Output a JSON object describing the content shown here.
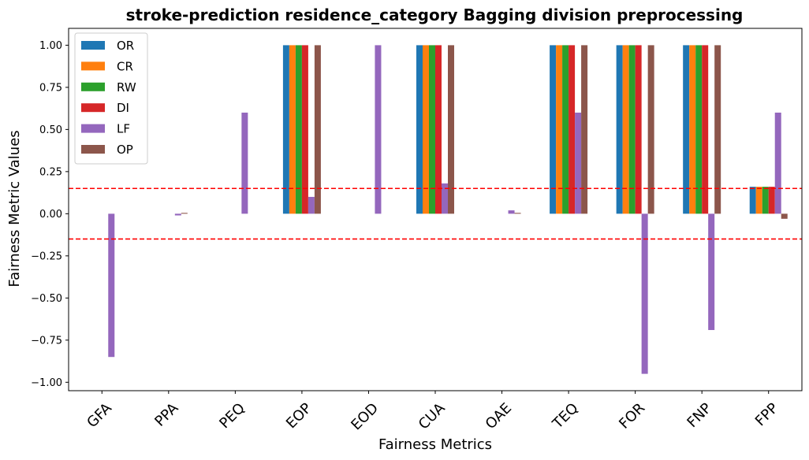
{
  "chart_data": {
    "type": "bar",
    "title": "stroke-prediction residence_category Bagging division preprocessing",
    "xlabel": "Fairness Metrics",
    "ylabel": "Fairness Metric Values",
    "categories": [
      "GFA",
      "PPA",
      "PEQ",
      "EOP",
      "EOD",
      "CUA",
      "OAE",
      "TEQ",
      "FOR",
      "FNP",
      "FPP"
    ],
    "series": [
      {
        "name": "OR",
        "color": "#1f77b4",
        "values": [
          0,
          0,
          0,
          1.0,
          0,
          1.0,
          0,
          1.0,
          1.0,
          1.0,
          0.16
        ]
      },
      {
        "name": "CR",
        "color": "#ff7f0e",
        "values": [
          0,
          0,
          0,
          1.0,
          0,
          1.0,
          0,
          1.0,
          1.0,
          1.0,
          0.16
        ]
      },
      {
        "name": "RW",
        "color": "#2ca02c",
        "values": [
          0,
          0,
          0,
          1.0,
          0,
          1.0,
          0,
          1.0,
          1.0,
          1.0,
          0.16
        ]
      },
      {
        "name": "DI",
        "color": "#d62728",
        "values": [
          0,
          0,
          0,
          1.0,
          0,
          1.0,
          0,
          1.0,
          1.0,
          1.0,
          0.16
        ]
      },
      {
        "name": "LF",
        "color": "#9467bd",
        "values": [
          -0.85,
          -0.01,
          0.6,
          0.1,
          1.0,
          0.18,
          0.02,
          0.6,
          -0.95,
          -0.69,
          0.6
        ]
      },
      {
        "name": "OP",
        "color": "#8c564b",
        "values": [
          0,
          0.005,
          0,
          1.0,
          0,
          1.0,
          0.005,
          1.0,
          1.0,
          1.0,
          -0.03
        ]
      }
    ],
    "ylim": [
      -1.05,
      1.1
    ],
    "yticks": [
      "−1.00",
      "−0.75",
      "−0.50",
      "−0.25",
      "0.00",
      "0.25",
      "0.50",
      "0.75",
      "1.00"
    ],
    "ytick_values": [
      -1.0,
      -0.75,
      -0.5,
      -0.25,
      0.0,
      0.25,
      0.5,
      0.75,
      1.0
    ],
    "reference_lines": [
      0.15,
      -0.15
    ],
    "reference_line_color": "#ff0000",
    "legend_placement": "top-left",
    "grid": false
  }
}
